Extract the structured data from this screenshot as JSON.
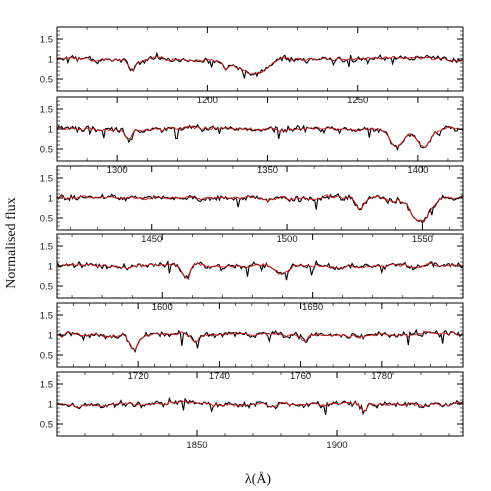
{
  "chart_data": {
    "type": "line",
    "ylabel": "Normalised flux",
    "xlabel": "λ(Å)",
    "series_colors": {
      "observed": "#000000",
      "model": "#d01818"
    },
    "panels": [
      {
        "xlim": [
          1150,
          1285
        ],
        "ylim": [
          0.2,
          1.8
        ],
        "x_ticks": [
          1200,
          1250
        ],
        "y_ticks": [
          0.5,
          1,
          1.5
        ],
        "absorption_lines": [
          [
            1175,
            0.25,
            1.2
          ],
          [
            1215,
            0.35,
            4.5
          ],
          [
            1206,
            0.15,
            1.2
          ]
        ]
      },
      {
        "xlim": [
          1280,
          1415
        ],
        "ylim": [
          0.2,
          1.8
        ],
        "x_ticks": [
          1300,
          1350,
          1400
        ],
        "y_ticks": [
          0.5,
          1,
          1.5
        ],
        "absorption_lines": [
          [
            1393,
            0.45,
            2.0
          ],
          [
            1402,
            0.4,
            2.0
          ],
          [
            1304,
            0.3,
            1.0
          ]
        ]
      },
      {
        "xlim": [
          1415,
          1565
        ],
        "ylim": [
          0.2,
          1.8
        ],
        "x_ticks": [
          1450,
          1500,
          1550
        ],
        "y_ticks": [
          0.5,
          1,
          1.5
        ],
        "absorption_lines": [
          [
            1527,
            0.3,
            1.5
          ],
          [
            1548,
            0.35,
            3.0
          ],
          [
            1551,
            0.3,
            3.0
          ]
        ]
      },
      {
        "xlim": [
          1565,
          1700
        ],
        "ylim": [
          0.2,
          1.8
        ],
        "x_ticks": [
          1600,
          1650
        ],
        "y_ticks": [
          0.5,
          1,
          1.5
        ],
        "absorption_lines": [
          [
            1608,
            0.3,
            1.2
          ],
          [
            1640,
            0.2,
            2.0
          ]
        ]
      },
      {
        "xlim": [
          1700,
          1800
        ],
        "ylim": [
          0.2,
          1.8
        ],
        "x_ticks": [
          1720,
          1740,
          1760,
          1780
        ],
        "y_ticks": [
          0.5,
          1,
          1.5
        ],
        "absorption_lines": [
          [
            1719,
            0.3,
            1.0
          ],
          [
            1734,
            0.2,
            0.8
          ],
          [
            1761,
            0.2,
            0.8
          ]
        ]
      },
      {
        "xlim": [
          1800,
          1945
        ],
        "ylim": [
          0.2,
          1.8
        ],
        "x_ticks": [
          1850,
          1900
        ],
        "y_ticks": [
          0.5,
          1,
          1.5
        ],
        "absorption_lines": [
          [
            1910,
            0.2,
            1.0
          ]
        ]
      }
    ]
  }
}
